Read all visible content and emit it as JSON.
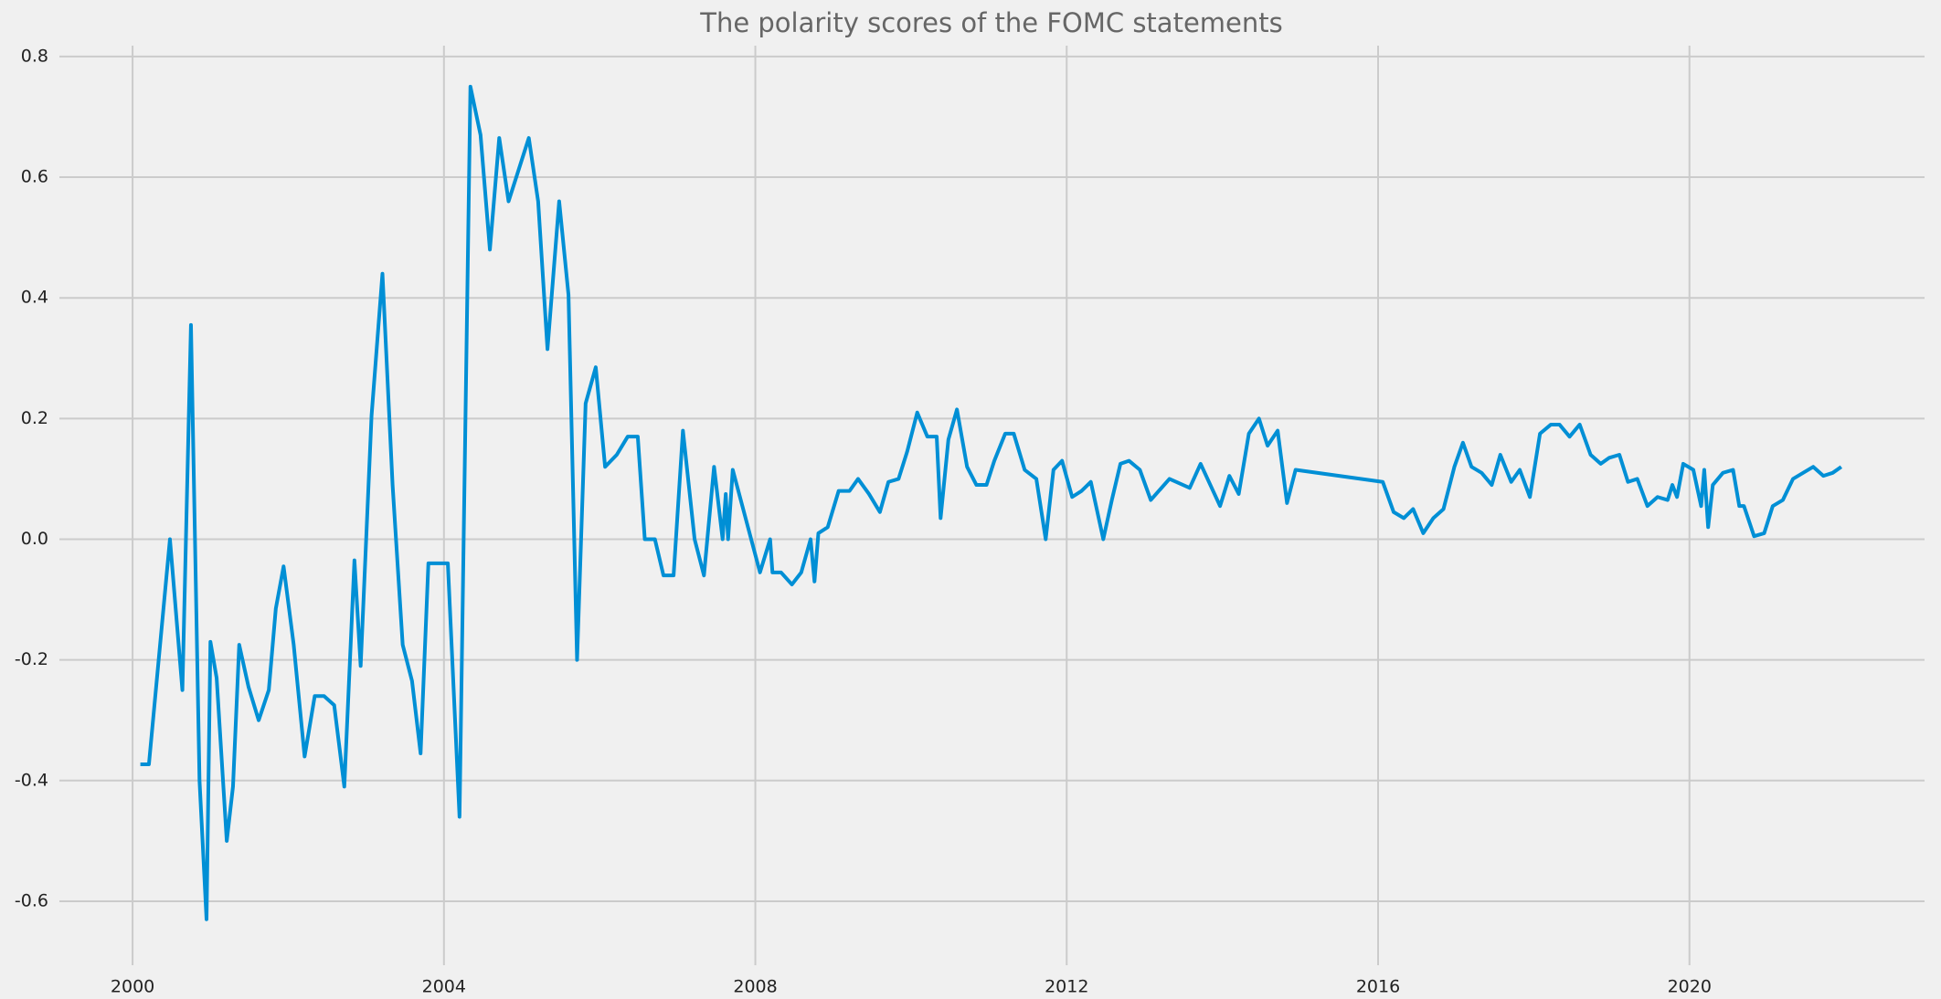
{
  "chart_data": {
    "type": "line",
    "title": "The polarity scores of the FOMC statements",
    "color": "#008fd5",
    "grid": true,
    "xlim": [
      1999.06,
      2023.02
    ],
    "xticks": [
      2000,
      2004,
      2008,
      2012,
      2016,
      2020
    ],
    "ylim": [
      -0.706,
      0.818
    ],
    "yticks": [
      -0.6,
      -0.4,
      -0.2,
      {
        "value": 0,
        "label": "0.0"
      },
      0.2,
      0.4,
      0.6,
      0.8
    ],
    "x": [
      2000.1,
      2000.21,
      2000.48,
      2000.64,
      2000.75,
      2000.86,
      2000.95,
      2001.0,
      2001.08,
      2001.21,
      2001.29,
      2001.37,
      2001.49,
      2001.62,
      2001.75,
      2001.84,
      2001.94,
      2002.07,
      2002.21,
      2002.34,
      2002.46,
      2002.59,
      2002.72,
      2002.85,
      2002.93,
      2003.07,
      2003.21,
      2003.34,
      2003.47,
      2003.59,
      2003.7,
      2003.8,
      2003.96,
      2004.05,
      2004.2,
      2004.34,
      2004.47,
      2004.59,
      2004.71,
      2004.83,
      2005.09,
      2005.21,
      2005.33,
      2005.48,
      2005.6,
      2005.71,
      2005.82,
      2005.95,
      2006.07,
      2006.22,
      2006.36,
      2006.49,
      2006.58,
      2006.71,
      2006.82,
      2006.95,
      2007.07,
      2007.22,
      2007.34,
      2007.47,
      2007.58,
      2007.62,
      2007.65,
      2007.71,
      2008.06,
      2008.19,
      2008.22,
      2008.33,
      2008.47,
      2008.59,
      2008.71,
      2008.76,
      2008.81,
      2008.93,
      2009.07,
      2009.21,
      2009.32,
      2009.46,
      2009.6,
      2009.71,
      2009.84,
      2009.95,
      2010.08,
      2010.21,
      2010.33,
      2010.38,
      2010.48,
      2010.59,
      2010.72,
      2010.84,
      2010.97,
      2011.07,
      2011.21,
      2011.32,
      2011.46,
      2011.61,
      2011.73,
      2011.83,
      2011.94,
      2012.07,
      2012.19,
      2012.31,
      2012.47,
      2012.58,
      2012.69,
      2012.8,
      2012.94,
      2013.08,
      2013.32,
      2013.58,
      2013.72,
      2013.97,
      2014.09,
      2014.21,
      2014.34,
      2014.47,
      2014.58,
      2014.71,
      2014.83,
      2014.94,
      2016.06,
      2016.2,
      2016.33,
      2016.45,
      2016.58,
      2016.71,
      2016.84,
      2016.98,
      2017.09,
      2017.2,
      2017.33,
      2017.46,
      2017.57,
      2017.71,
      2017.82,
      2017.95,
      2018.08,
      2018.22,
      2018.33,
      2018.46,
      2018.59,
      2018.73,
      2018.86,
      2018.97,
      2019.1,
      2019.21,
      2019.33,
      2019.46,
      2019.59,
      2019.72,
      2019.78,
      2019.84,
      2019.92,
      2020.05,
      2020.15,
      2020.19,
      2020.24,
      2020.3,
      2020.43,
      2020.56,
      2020.64,
      2020.7,
      2020.83,
      2020.96,
      2021.07,
      2021.2,
      2021.33,
      2021.46,
      2021.59,
      2021.72,
      2021.84,
      2021.95
    ],
    "values": [
      -0.373,
      -0.373,
      0.0,
      -0.25,
      0.355,
      -0.4,
      -0.63,
      -0.17,
      -0.23,
      -0.5,
      -0.41,
      -0.175,
      -0.245,
      -0.3,
      -0.25,
      -0.115,
      -0.045,
      -0.175,
      -0.36,
      -0.26,
      -0.26,
      -0.275,
      -0.41,
      -0.035,
      -0.21,
      0.205,
      0.44,
      0.09,
      -0.175,
      -0.235,
      -0.355,
      -0.04,
      -0.04,
      -0.04,
      -0.46,
      0.75,
      0.67,
      0.48,
      0.665,
      0.56,
      0.665,
      0.56,
      0.315,
      0.56,
      0.405,
      -0.2,
      0.225,
      0.285,
      0.12,
      0.14,
      0.17,
      0.17,
      0.0,
      0.0,
      -0.06,
      -0.06,
      0.18,
      0.0,
      -0.06,
      0.12,
      0.0,
      0.075,
      0.0,
      0.115,
      -0.055,
      0.0,
      -0.055,
      -0.055,
      -0.075,
      -0.055,
      0.0,
      -0.07,
      0.01,
      0.02,
      0.08,
      0.08,
      0.1,
      0.075,
      0.045,
      0.095,
      0.1,
      0.145,
      0.21,
      0.17,
      0.17,
      0.035,
      0.165,
      0.215,
      0.12,
      0.09,
      0.09,
      0.13,
      0.175,
      0.175,
      0.115,
      0.1,
      0.0,
      0.115,
      0.13,
      0.07,
      0.08,
      0.095,
      0.0,
      0.065,
      0.125,
      0.13,
      0.115,
      0.065,
      0.1,
      0.085,
      0.125,
      0.055,
      0.105,
      0.075,
      0.175,
      0.2,
      0.155,
      0.18,
      0.06,
      0.115,
      0.095,
      0.045,
      0.035,
      0.05,
      0.01,
      0.035,
      0.05,
      0.12,
      0.16,
      0.12,
      0.11,
      0.09,
      0.14,
      0.095,
      0.115,
      0.07,
      0.175,
      0.19,
      0.19,
      0.17,
      0.19,
      0.14,
      0.125,
      0.135,
      0.14,
      0.095,
      0.1,
      0.055,
      0.07,
      0.065,
      0.09,
      0.07,
      0.125,
      0.115,
      0.055,
      0.115,
      0.02,
      0.09,
      0.11,
      0.115,
      0.055,
      0.055,
      0.005,
      0.01,
      0.055,
      0.065,
      0.1,
      0.11,
      0.12,
      0.105,
      0.11,
      0.12
    ]
  }
}
